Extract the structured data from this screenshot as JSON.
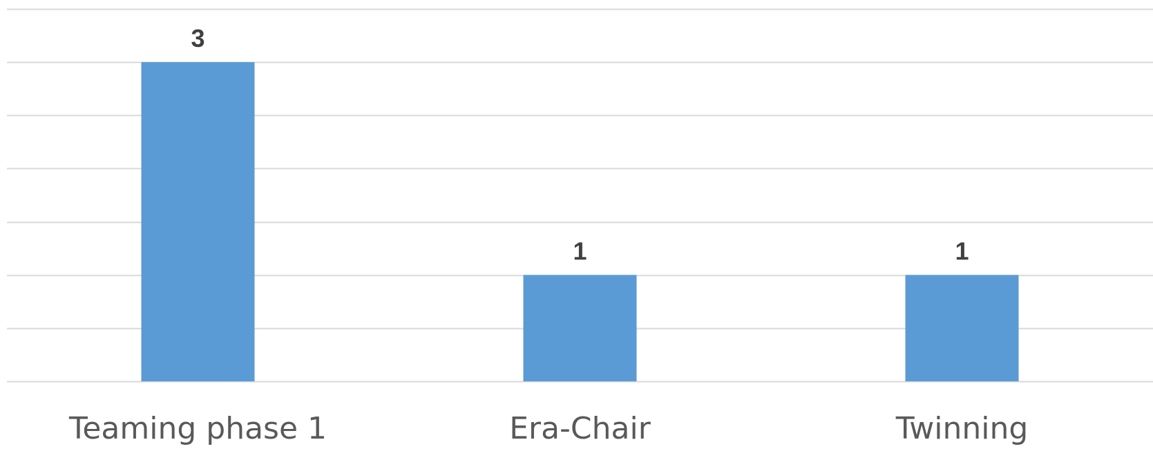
{
  "chart_data": {
    "type": "bar",
    "categories": [
      "Teaming phase 1",
      "Era-Chair",
      "Twinning"
    ],
    "values": [
      3,
      1,
      1
    ],
    "data_labels": [
      "3",
      "1",
      "1"
    ],
    "title": "",
    "xlabel": "",
    "ylabel": "",
    "ylim": [
      0,
      3.5
    ],
    "grid": true,
    "legend": "none",
    "colors": {
      "bar": "#5b9bd5",
      "grid": "#d9d9d9",
      "data_label": "#404040",
      "tick_label": "#595959"
    }
  }
}
